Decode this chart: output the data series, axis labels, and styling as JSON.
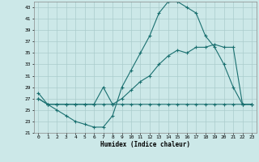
{
  "xlabel": "Humidex (Indice chaleur)",
  "background_color": "#cce8e8",
  "line_color": "#1a7070",
  "grid_color": "#aacccc",
  "xlim": [
    -0.5,
    23.5
  ],
  "ylim": [
    21,
    44
  ],
  "yticks": [
    21,
    23,
    25,
    27,
    29,
    31,
    33,
    35,
    37,
    39,
    41,
    43
  ],
  "xticks": [
    0,
    1,
    2,
    3,
    4,
    5,
    6,
    7,
    8,
    9,
    10,
    11,
    12,
    13,
    14,
    15,
    16,
    17,
    18,
    19,
    20,
    21,
    22,
    23
  ],
  "line1_x": [
    0,
    1,
    2,
    3,
    4,
    5,
    6,
    7,
    8,
    9,
    10,
    11,
    12,
    13,
    14,
    15,
    16,
    17,
    18,
    19,
    20,
    21,
    22,
    23
  ],
  "line1_y": [
    28,
    26,
    25,
    24,
    23,
    22.5,
    22,
    22,
    24,
    29,
    32,
    35,
    38,
    42,
    44,
    44,
    43,
    42,
    38,
    36,
    33,
    29,
    26,
    26
  ],
  "line2_x": [
    0,
    1,
    2,
    3,
    4,
    5,
    6,
    7,
    8,
    9,
    10,
    11,
    12,
    13,
    14,
    15,
    16,
    17,
    18,
    19,
    20,
    21,
    22,
    23
  ],
  "line2_y": [
    27,
    26,
    26,
    26,
    26,
    26,
    26,
    29,
    26,
    27,
    28.5,
    30,
    31,
    33,
    34.5,
    35.5,
    35,
    36,
    36,
    36.5,
    36,
    36,
    26,
    26
  ],
  "line3_x": [
    0,
    1,
    2,
    3,
    4,
    5,
    6,
    7,
    8,
    9,
    10,
    11,
    12,
    13,
    14,
    15,
    16,
    17,
    18,
    19,
    20,
    21,
    22,
    23
  ],
  "line3_y": [
    27,
    26,
    26,
    26,
    26,
    26,
    26,
    26,
    26,
    26,
    26,
    26,
    26,
    26,
    26,
    26,
    26,
    26,
    26,
    26,
    26,
    26,
    26,
    26
  ]
}
